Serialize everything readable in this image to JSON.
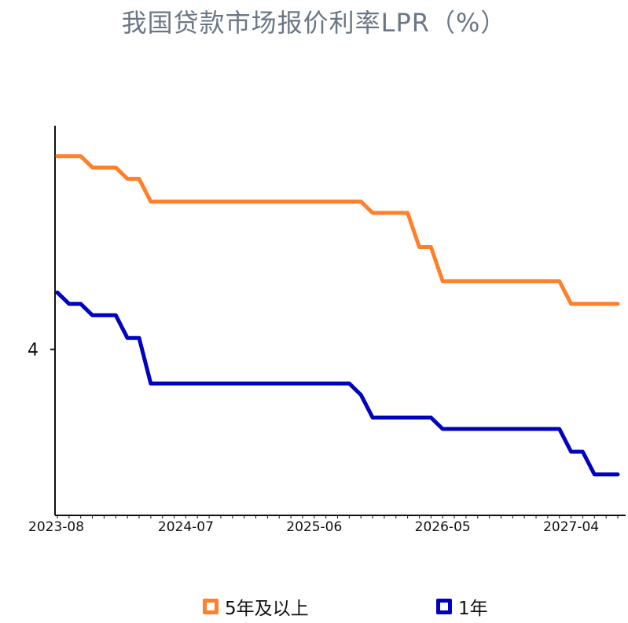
{
  "title": "我国贷款市场报价利率LPR（%）",
  "colors": {
    "five_year": "#ff7f2a",
    "one_year": "#0000c0",
    "axis": "#111111",
    "title": "#6b7785"
  },
  "chart_data": {
    "type": "line",
    "title": "我国贷款市场报价利率LPR（%）",
    "xlabel": "",
    "ylabel": "",
    "x_tick_labels": [
      "2023-08",
      "2024-07",
      "2025-06",
      "2026-05",
      "2027-04"
    ],
    "y_tick_labels": [
      "4"
    ],
    "ylim": [
      3.27,
      4.88
    ],
    "grid": false,
    "legend_position": "bottom",
    "x": [
      "2023-08",
      "2023-09",
      "2023-10",
      "2023-11",
      "2023-12",
      "2024-01",
      "2024-02",
      "2024-03",
      "2024-04",
      "2024-05",
      "2024-06",
      "2024-07",
      "2024-08",
      "2024-09",
      "2024-10",
      "2024-11",
      "2024-12",
      "2025-01",
      "2025-02",
      "2025-03",
      "2025-04",
      "2025-05",
      "2025-06",
      "2025-07",
      "2025-08",
      "2025-09",
      "2025-10",
      "2025-11",
      "2025-12",
      "2026-01",
      "2026-02",
      "2026-03",
      "2026-04",
      "2026-05",
      "2026-06",
      "2026-07",
      "2026-08",
      "2026-09",
      "2026-10",
      "2026-11",
      "2026-12",
      "2027-01",
      "2027-02",
      "2027-03",
      "2027-04",
      "2027-05",
      "2027-06",
      "2027-07",
      "2027-08"
    ],
    "series": [
      {
        "name": "5年及以上",
        "color": "#ff7f2a",
        "values": [
          4.85,
          4.85,
          4.85,
          4.8,
          4.8,
          4.8,
          4.75,
          4.75,
          4.65,
          4.65,
          4.65,
          4.65,
          4.65,
          4.65,
          4.65,
          4.65,
          4.65,
          4.65,
          4.65,
          4.65,
          4.65,
          4.65,
          4.65,
          4.65,
          4.65,
          4.65,
          4.65,
          4.6,
          4.6,
          4.6,
          4.6,
          4.45,
          4.45,
          4.3,
          4.3,
          4.3,
          4.3,
          4.3,
          4.3,
          4.3,
          4.3,
          4.3,
          4.3,
          4.3,
          4.2,
          4.2,
          4.2,
          4.2,
          4.2
        ]
      },
      {
        "name": "1年",
        "color": "#0000c0",
        "values": [
          4.25,
          4.2,
          4.2,
          4.15,
          4.15,
          4.15,
          4.05,
          4.05,
          3.85,
          3.85,
          3.85,
          3.85,
          3.85,
          3.85,
          3.85,
          3.85,
          3.85,
          3.85,
          3.85,
          3.85,
          3.85,
          3.85,
          3.85,
          3.85,
          3.85,
          3.85,
          3.8,
          3.7,
          3.7,
          3.7,
          3.7,
          3.7,
          3.7,
          3.65,
          3.65,
          3.65,
          3.65,
          3.65,
          3.65,
          3.65,
          3.65,
          3.65,
          3.65,
          3.65,
          3.55,
          3.55,
          3.45,
          3.45,
          3.45
        ]
      }
    ]
  },
  "legend": {
    "item1": "5年及以上",
    "item2": "1年"
  }
}
